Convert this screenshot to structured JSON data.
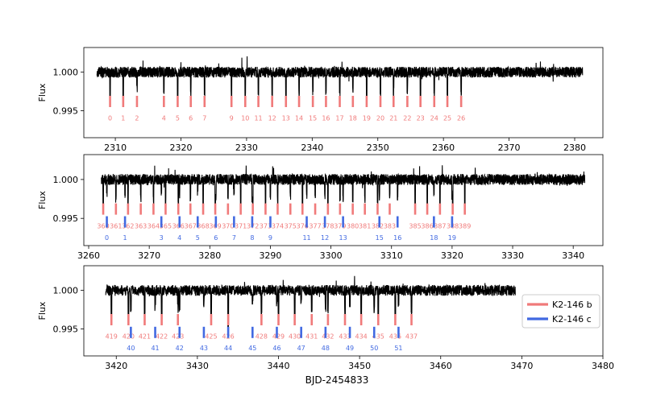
{
  "chart_data": {
    "type": "line",
    "xlabel": "BJD-2454833",
    "ylabel": "Flux",
    "legend": {
      "position": "right of bottom panel",
      "entries": [
        {
          "label": "K2-146 b",
          "color": "#f07a7a"
        },
        {
          "label": "K2-146 c",
          "color": "#4169e1"
        }
      ]
    },
    "colors": {
      "flux": "#000000",
      "planet_b": "#f07a7a",
      "planet_c": "#4169e1"
    },
    "panels": [
      {
        "ylabel": "Flux",
        "xlim": [
          2305.2,
          2384.3
        ],
        "ylim": [
          0.9915,
          1.0032
        ],
        "xticks": [
          2310,
          2320,
          2330,
          2340,
          2350,
          2360,
          2370,
          2380
        ],
        "yticks": [
          1.0,
          0.995
        ],
        "ytick_labels": [
          "1.000",
          "0.995"
        ],
        "flux_range": [
          2307.2,
          2381.2
        ],
        "transits_b": [
          {
            "n": "0",
            "x": 2309.2
          },
          {
            "n": "1",
            "x": 2311.2
          },
          {
            "n": "2",
            "x": 2313.3
          },
          {
            "n": "4",
            "x": 2317.4
          },
          {
            "n": "5",
            "x": 2319.5
          },
          {
            "n": "6",
            "x": 2321.5
          },
          {
            "n": "7",
            "x": 2323.6
          },
          {
            "n": "9",
            "x": 2327.7
          },
          {
            "n": "10",
            "x": 2329.8
          },
          {
            "n": "11",
            "x": 2331.8
          },
          {
            "n": "12",
            "x": 2333.9
          },
          {
            "n": "13",
            "x": 2336.0
          },
          {
            "n": "14",
            "x": 2338.0
          },
          {
            "n": "15",
            "x": 2340.1
          },
          {
            "n": "16",
            "x": 2342.1
          },
          {
            "n": "17",
            "x": 2344.2
          },
          {
            "n": "18",
            "x": 2346.2
          },
          {
            "n": "19",
            "x": 2348.3
          },
          {
            "n": "20",
            "x": 2350.4
          },
          {
            "n": "21",
            "x": 2352.4
          },
          {
            "n": "22",
            "x": 2354.5
          },
          {
            "n": "23",
            "x": 2356.5
          },
          {
            "n": "24",
            "x": 2358.6
          },
          {
            "n": "25",
            "x": 2360.6
          },
          {
            "n": "26",
            "x": 2362.7
          }
        ],
        "transits_c": []
      },
      {
        "ylabel": "Flux",
        "xlim": [
          3259.2,
          3344.9
        ],
        "ylim": [
          0.9915,
          1.0032
        ],
        "xticks": [
          3260,
          3270,
          3280,
          3290,
          3300,
          3310,
          3320,
          3330,
          3340
        ],
        "yticks": [
          1.0,
          0.995
        ],
        "ytick_labels": [
          "1.000",
          "0.995"
        ],
        "flux_range": [
          3262.1,
          3341.9
        ],
        "transits_b": [
          {
            "n": "360",
            "x": 3262.4
          },
          {
            "n": "361",
            "x": 3264.5
          },
          {
            "n": "362",
            "x": 3266.5
          },
          {
            "n": "363",
            "x": 3268.6
          },
          {
            "n": "364",
            "x": 3270.7
          },
          {
            "n": "365",
            "x": 3272.7
          },
          {
            "n": "366",
            "x": 3274.8
          },
          {
            "n": "367",
            "x": 3276.8
          },
          {
            "n": "368",
            "x": 3278.9
          },
          {
            "n": "369",
            "x": 3280.9
          },
          {
            "n": "370",
            "x": 3283.0
          },
          {
            "n": "371",
            "x": 3285.1
          },
          {
            "n": "372",
            "x": 3287.1
          },
          {
            "n": "373",
            "x": 3289.2
          },
          {
            "n": "374",
            "x": 3291.2
          },
          {
            "n": "375",
            "x": 3293.3
          },
          {
            "n": "376",
            "x": 3295.3
          },
          {
            "n": "377",
            "x": 3297.4
          },
          {
            "n": "378",
            "x": 3299.5
          },
          {
            "n": "379",
            "x": 3301.5
          },
          {
            "n": "380",
            "x": 3303.6
          },
          {
            "n": "381",
            "x": 3305.6
          },
          {
            "n": "382",
            "x": 3307.7
          },
          {
            "n": "383",
            "x": 3309.7
          },
          {
            "n": "385",
            "x": 3313.9
          },
          {
            "n": "386",
            "x": 3315.9
          },
          {
            "n": "387",
            "x": 3318.0
          },
          {
            "n": "388",
            "x": 3320.1
          },
          {
            "n": "389",
            "x": 3322.1
          }
        ],
        "transits_c": [
          {
            "n": "0",
            "x": 3263.0
          },
          {
            "n": "1",
            "x": 3266.0
          },
          {
            "n": "3",
            "x": 3272.0
          },
          {
            "n": "4",
            "x": 3275.0
          },
          {
            "n": "5",
            "x": 3278.0
          },
          {
            "n": "6",
            "x": 3281.0
          },
          {
            "n": "7",
            "x": 3284.0
          },
          {
            "n": "8",
            "x": 3287.0
          },
          {
            "n": "9",
            "x": 3290.0
          },
          {
            "n": "11",
            "x": 3296.0
          },
          {
            "n": "12",
            "x": 3299.0
          },
          {
            "n": "13",
            "x": 3302.0
          },
          {
            "n": "15",
            "x": 3308.0
          },
          {
            "n": "16",
            "x": 3311.0
          },
          {
            "n": "18",
            "x": 3317.0
          },
          {
            "n": "19",
            "x": 3320.0
          }
        ]
      },
      {
        "ylabel": "Flux",
        "xlim": [
          3416.0,
          3480.0
        ],
        "ylim": [
          0.9915,
          1.0032
        ],
        "xticks": [
          3420,
          3430,
          3440,
          3450,
          3460,
          3470,
          3480
        ],
        "yticks": [
          1.0,
          0.995
        ],
        "ytick_labels": [
          "1.000",
          "0.995"
        ],
        "flux_range": [
          3418.7,
          3469.2
        ],
        "transits_b": [
          {
            "n": "419",
            "x": 3419.4
          },
          {
            "n": "420",
            "x": 3421.5
          },
          {
            "n": "421",
            "x": 3423.5
          },
          {
            "n": "422",
            "x": 3425.6
          },
          {
            "n": "423",
            "x": 3427.6
          },
          {
            "n": "425",
            "x": 3431.7
          },
          {
            "n": "426",
            "x": 3433.8
          },
          {
            "n": "428",
            "x": 3437.9
          },
          {
            "n": "429",
            "x": 3440.0
          },
          {
            "n": "430",
            "x": 3442.0
          },
          {
            "n": "431",
            "x": 3444.1
          },
          {
            "n": "432",
            "x": 3446.1
          },
          {
            "n": "433",
            "x": 3448.2
          },
          {
            "n": "434",
            "x": 3450.2
          },
          {
            "n": "435",
            "x": 3452.3
          },
          {
            "n": "436",
            "x": 3454.4
          },
          {
            "n": "437",
            "x": 3456.4
          }
        ],
        "transits_c": [
          {
            "n": "40",
            "x": 3421.8
          },
          {
            "n": "41",
            "x": 3424.8
          },
          {
            "n": "42",
            "x": 3427.8
          },
          {
            "n": "43",
            "x": 3430.8
          },
          {
            "n": "44",
            "x": 3433.8
          },
          {
            "n": "45",
            "x": 3436.8
          },
          {
            "n": "46",
            "x": 3439.8
          },
          {
            "n": "47",
            "x": 3442.8
          },
          {
            "n": "48",
            "x": 3445.8
          },
          {
            "n": "49",
            "x": 3448.8
          },
          {
            "n": "50",
            "x": 3451.8
          },
          {
            "n": "51",
            "x": 3454.8
          }
        ]
      }
    ]
  }
}
